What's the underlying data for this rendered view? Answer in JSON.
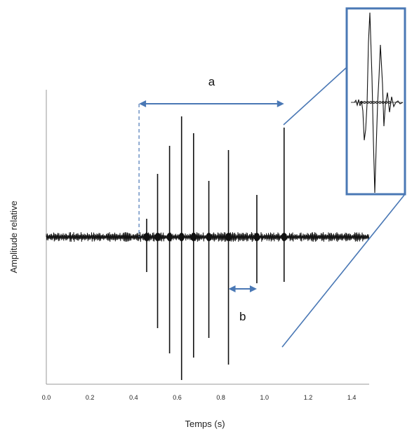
{
  "chart_data": {
    "type": "line",
    "xlabel": "Temps (s)",
    "ylabel": "Amplitude relative",
    "xlim": [
      0.0,
      1.48
    ],
    "xticks": [
      "0.0",
      "0.2",
      "0.4",
      "0.6",
      "0.8",
      "1.0",
      "1.2",
      "1.4"
    ],
    "pulses": [
      {
        "t": 0.46,
        "up": 0.13,
        "down": 0.25
      },
      {
        "t": 0.51,
        "up": 0.45,
        "down": 0.65
      },
      {
        "t": 0.565,
        "up": 0.65,
        "down": 0.83
      },
      {
        "t": 0.62,
        "up": 0.86,
        "down": 1.02
      },
      {
        "t": 0.675,
        "up": 0.74,
        "down": 0.86
      },
      {
        "t": 0.745,
        "up": 0.4,
        "down": 0.72
      },
      {
        "t": 0.835,
        "up": 0.62,
        "down": 0.91
      },
      {
        "t": 0.965,
        "up": 0.3,
        "down": 0.33
      },
      {
        "t": 1.09,
        "up": 0.78,
        "down": 0.32
      }
    ],
    "annotations": [
      {
        "label": "a",
        "from": 0.425,
        "to": 1.09
      },
      {
        "label": "b",
        "from": 0.835,
        "to": 0.965
      }
    ],
    "inset": {
      "zoom_of_pulse_at": 1.09
    },
    "colors": {
      "signal": "#111111",
      "annotation": "#4a78b5",
      "axis": "#9a9a9a"
    }
  }
}
